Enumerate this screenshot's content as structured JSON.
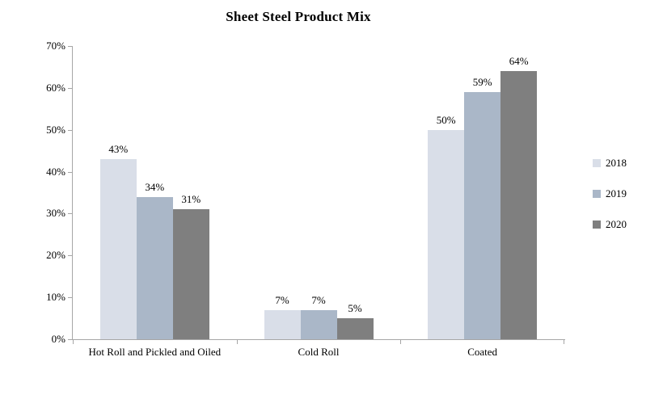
{
  "chart_data": {
    "type": "bar",
    "title": "Sheet Steel Product Mix",
    "categories": [
      "Hot Roll and Pickled and Oiled",
      "Cold Roll",
      "Coated"
    ],
    "series": [
      {
        "name": "2018",
        "color": "#d9dee8",
        "values": [
          43,
          7,
          50
        ]
      },
      {
        "name": "2019",
        "color": "#aab7c8",
        "values": [
          34,
          7,
          59
        ]
      },
      {
        "name": "2020",
        "color": "#7f7f7f",
        "values": [
          31,
          5,
          64
        ]
      }
    ],
    "value_suffix": "%",
    "show_data_labels": true,
    "xlabel": "",
    "ylabel": "",
    "ylim": [
      0,
      70
    ],
    "ytick_values": [
      0,
      10,
      20,
      30,
      40,
      50,
      60,
      70
    ],
    "ytick_labels": [
      "0%",
      "10%",
      "20%",
      "30%",
      "40%",
      "50%",
      "60%",
      "70%"
    ],
    "grid": false,
    "legend_position": "right"
  },
  "colors": {
    "axis": "#a6a6a6",
    "text": "#000000",
    "background": "#ffffff"
  }
}
